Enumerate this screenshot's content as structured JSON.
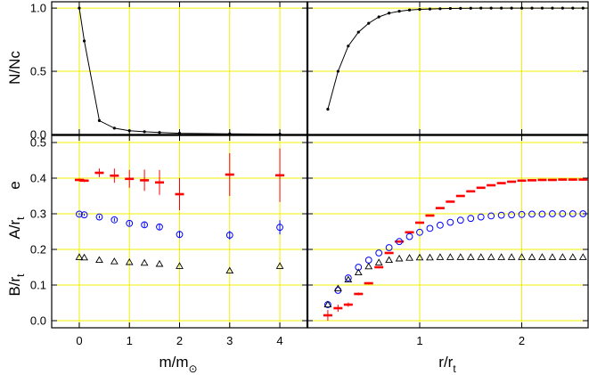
{
  "colors": {
    "grid": "#f0f000",
    "frame": "#000000",
    "e_series": "#ff0000",
    "a_series": "#0000ff",
    "b_series": "#000000",
    "line": "#000000"
  },
  "labels": {
    "xlabel_left_main": "m/m",
    "xlabel_left_sub": "⊙",
    "xlabel_right_main": "r/r",
    "xlabel_right_sub": "t",
    "ylabel_top": "N/Nc",
    "ylabel_bottom_e": "e",
    "ylabel_bottom_a_main": "A/r",
    "ylabel_bottom_a_sub": "t",
    "ylabel_bottom_b_main": "B/r",
    "ylabel_bottom_b_sub": "t"
  },
  "chart_data": [
    {
      "id": "top-left",
      "type": "line",
      "title": "",
      "xlim": [
        -0.55,
        4.55
      ],
      "ylim": [
        0,
        1.05
      ],
      "xticks": [
        0,
        1,
        2,
        3,
        4
      ],
      "yticks": [
        0,
        0.5,
        1.0
      ],
      "ytick_labels": [
        "0.0",
        "0.5",
        "1.0"
      ],
      "x": [
        0,
        0.1,
        0.4,
        0.7,
        1.0,
        1.3,
        1.6,
        2.0,
        3.0,
        4.0
      ],
      "y": [
        1.0,
        0.74,
        0.11,
        0.05,
        0.03,
        0.022,
        0.016,
        0.01,
        0.005,
        0.003
      ]
    },
    {
      "id": "top-right",
      "type": "line",
      "title": "",
      "xlim": [
        -0.1,
        2.65
      ],
      "ylim": [
        0,
        1.05
      ],
      "xticks": [
        1,
        2
      ],
      "yticks": [
        0,
        0.5,
        1.0
      ],
      "x": [
        0.1,
        0.2,
        0.3,
        0.4,
        0.5,
        0.6,
        0.7,
        0.8,
        0.9,
        1.0,
        1.1,
        1.2,
        1.3,
        1.4,
        1.5,
        1.6,
        1.7,
        1.8,
        1.9,
        2.0,
        2.1,
        2.2,
        2.3,
        2.4,
        2.5,
        2.6
      ],
      "y": [
        0.2,
        0.5,
        0.7,
        0.81,
        0.88,
        0.93,
        0.96,
        0.975,
        0.985,
        0.99,
        0.993,
        0.995,
        0.997,
        0.998,
        0.999,
        1.0,
        1.0,
        1.0,
        1.0,
        1.0,
        1.0,
        1.0,
        1.0,
        1.0,
        1.0,
        1.0
      ]
    },
    {
      "id": "bottom-left",
      "type": "scatter",
      "title": "",
      "xlim": [
        -0.55,
        4.55
      ],
      "ylim": [
        -0.02,
        0.52
      ],
      "xticks": [
        0,
        1,
        2,
        3,
        4
      ],
      "xtick_labels": [
        "0",
        "1",
        "2",
        "3",
        "4"
      ],
      "yticks": [
        0,
        0.1,
        0.2,
        0.3,
        0.4,
        0.5
      ],
      "ytick_labels": [
        "0.0",
        "0.1",
        "0.2",
        "0.3",
        "0.4",
        "0.5"
      ],
      "series": [
        {
          "name": "e",
          "marker": "dash",
          "x": [
            0,
            0.1,
            0.4,
            0.7,
            1.0,
            1.3,
            1.6,
            2.0,
            3.0,
            4.0
          ],
          "y": [
            0.395,
            0.393,
            0.415,
            0.407,
            0.398,
            0.394,
            0.388,
            0.355,
            0.41,
            0.408
          ],
          "err": [
            0.004,
            0.004,
            0.012,
            0.02,
            0.025,
            0.03,
            0.035,
            0.045,
            0.06,
            0.075
          ]
        },
        {
          "name": "A/r_t",
          "marker": "circle",
          "x": [
            0,
            0.1,
            0.4,
            0.7,
            1.0,
            1.3,
            1.6,
            2.0,
            3.0,
            4.0
          ],
          "y": [
            0.299,
            0.297,
            0.291,
            0.283,
            0.273,
            0.269,
            0.263,
            0.242,
            0.24,
            0.262
          ],
          "err": [
            0.003,
            0.003,
            0.004,
            0.005,
            0.006,
            0.007,
            0.008,
            0.01,
            0.012,
            0.02
          ]
        },
        {
          "name": "B/r_t",
          "marker": "triangle",
          "x": [
            0,
            0.1,
            0.4,
            0.7,
            1.0,
            1.3,
            1.6,
            2.0,
            3.0,
            4.0
          ],
          "y": [
            0.178,
            0.177,
            0.17,
            0.166,
            0.164,
            0.162,
            0.159,
            0.153,
            0.14,
            0.153
          ],
          "err": [
            0,
            0,
            0,
            0,
            0,
            0,
            0,
            0,
            0,
            0
          ]
        }
      ]
    },
    {
      "id": "bottom-right",
      "type": "scatter",
      "title": "",
      "xlim": [
        -0.1,
        2.65
      ],
      "ylim": [
        -0.02,
        0.52
      ],
      "xticks": [
        1,
        2
      ],
      "xtick_labels": [
        "1",
        "2"
      ],
      "yticks": [
        0,
        0.1,
        0.2,
        0.3,
        0.4,
        0.5
      ],
      "series": [
        {
          "name": "e",
          "marker": "dash",
          "x": [
            0.1,
            0.2,
            0.3,
            0.4,
            0.5,
            0.6,
            0.7,
            0.8,
            0.9,
            1.0,
            1.1,
            1.2,
            1.3,
            1.4,
            1.5,
            1.6,
            1.7,
            1.8,
            1.9,
            2.0,
            2.1,
            2.2,
            2.3,
            2.4,
            2.5,
            2.6
          ],
          "y": [
            0.015,
            0.035,
            0.045,
            0.075,
            0.105,
            0.15,
            0.19,
            0.222,
            0.248,
            0.275,
            0.295,
            0.316,
            0.334,
            0.35,
            0.363,
            0.373,
            0.38,
            0.386,
            0.39,
            0.393,
            0.394,
            0.395,
            0.395,
            0.396,
            0.396,
            0.396
          ],
          "err": [
            0.015,
            0.01,
            0.006,
            0.004,
            0.003,
            0.003,
            0.002,
            0.002,
            0.002,
            0.002,
            0.002,
            0.002,
            0.002,
            0.002,
            0.002,
            0.002,
            0.002,
            0.002,
            0.002,
            0.002,
            0.002,
            0.002,
            0.002,
            0.002,
            0.002,
            0.002
          ]
        },
        {
          "name": "A/r_t",
          "marker": "circle",
          "x": [
            0.1,
            0.2,
            0.3,
            0.4,
            0.5,
            0.6,
            0.7,
            0.8,
            0.9,
            1.0,
            1.1,
            1.2,
            1.3,
            1.4,
            1.5,
            1.6,
            1.7,
            1.8,
            1.9,
            2.0,
            2.1,
            2.2,
            2.3,
            2.4,
            2.5,
            2.6
          ],
          "y": [
            0.045,
            0.085,
            0.12,
            0.15,
            0.17,
            0.19,
            0.205,
            0.222,
            0.236,
            0.248,
            0.259,
            0.268,
            0.276,
            0.282,
            0.287,
            0.291,
            0.294,
            0.296,
            0.297,
            0.298,
            0.299,
            0.299,
            0.3,
            0.3,
            0.3,
            0.3
          ],
          "err": [
            0,
            0,
            0,
            0,
            0,
            0,
            0,
            0,
            0,
            0,
            0,
            0,
            0,
            0,
            0,
            0,
            0,
            0,
            0,
            0,
            0,
            0,
            0,
            0,
            0,
            0
          ]
        },
        {
          "name": "B/r_t",
          "marker": "triangle",
          "x": [
            0.1,
            0.2,
            0.3,
            0.4,
            0.5,
            0.6,
            0.7,
            0.8,
            0.9,
            1.0,
            1.1,
            1.2,
            1.3,
            1.4,
            1.5,
            1.6,
            1.7,
            1.8,
            1.9,
            2.0,
            2.1,
            2.2,
            2.3,
            2.4,
            2.5,
            2.6
          ],
          "y": [
            0.045,
            0.09,
            0.115,
            0.135,
            0.152,
            0.163,
            0.17,
            0.174,
            0.176,
            0.177,
            0.177,
            0.178,
            0.178,
            0.178,
            0.178,
            0.178,
            0.178,
            0.178,
            0.178,
            0.178,
            0.178,
            0.178,
            0.178,
            0.178,
            0.178,
            0.178
          ],
          "err": [
            0,
            0,
            0,
            0,
            0,
            0,
            0,
            0,
            0,
            0,
            0,
            0,
            0,
            0,
            0,
            0,
            0,
            0,
            0,
            0,
            0,
            0,
            0,
            0,
            0,
            0
          ]
        }
      ]
    }
  ]
}
